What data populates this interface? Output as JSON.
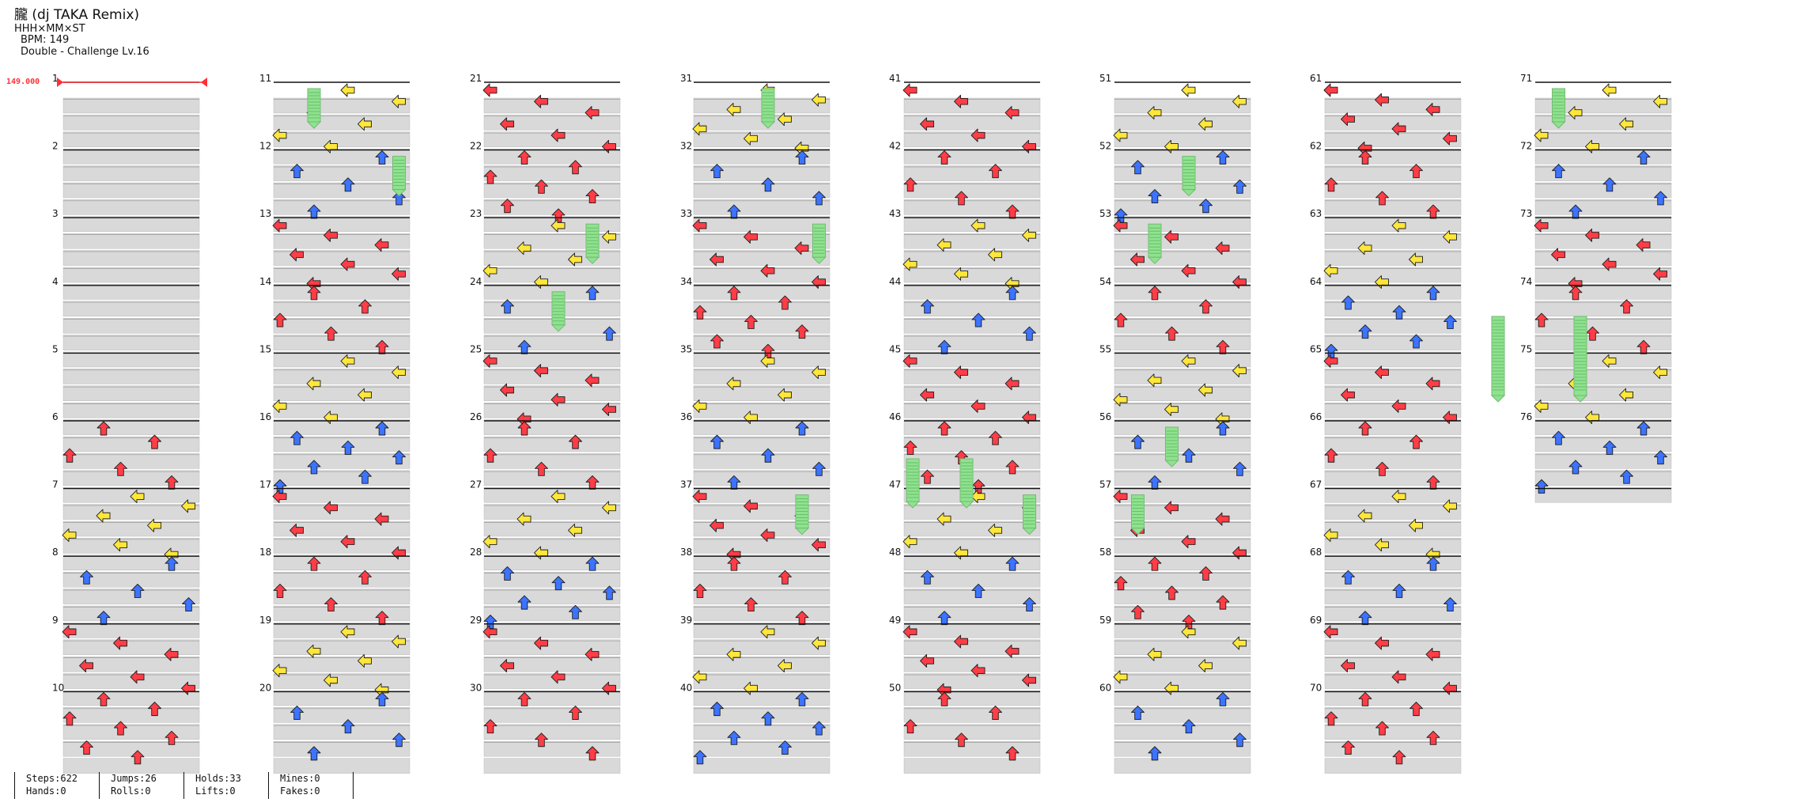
{
  "header": {
    "title": "朧 (dj TAKA Remix)",
    "artist": "HHH×MM×ST",
    "bpm": "BPM: 149",
    "chart_type": "Double - Challenge Lv.16"
  },
  "bpm_marker": "149.000",
  "measure_labels": [
    "1",
    "2",
    "3",
    "4",
    "5",
    "6",
    "7",
    "8",
    "9",
    "10",
    "11",
    "12",
    "13",
    "14",
    "15",
    "16",
    "17",
    "18",
    "19",
    "20",
    "21",
    "22",
    "23",
    "24",
    "25",
    "26",
    "27",
    "28",
    "29",
    "30",
    "31",
    "32",
    "33",
    "34",
    "35",
    "36",
    "37",
    "38",
    "39",
    "40",
    "41",
    "42",
    "43",
    "44",
    "45",
    "46",
    "47",
    "48",
    "49",
    "50",
    "51",
    "52",
    "53",
    "54",
    "55",
    "56",
    "57",
    "58",
    "59",
    "60",
    "61",
    "62",
    "63",
    "64",
    "65",
    "66",
    "67",
    "68",
    "69",
    "70",
    "71",
    "72",
    "73",
    "74",
    "75",
    "76"
  ],
  "stats": {
    "steps": "Steps:622",
    "hands": "Hands:0",
    "jumps": "Jumps:26",
    "rolls": "Rolls:0",
    "holds": "Holds:33",
    "lifts": "Lifts:0",
    "mines": "Mines:0",
    "fakes": "Fakes:0"
  },
  "colors": {
    "red": "#ff3d46",
    "blue": "#3c73ff",
    "yellow": "#ffe63a",
    "green": "#8fe28f",
    "grid_gray": "#d9d9d9",
    "measure_line": "#111111",
    "beat_line": "#999999",
    "bpm_line": "#ff2f35"
  },
  "arrow_icon_names": [
    "left-arrow-icon",
    "down-arrow-icon",
    "up-arrow-icon",
    "right-arrow-icon",
    "hold-bar-icon"
  ]
}
